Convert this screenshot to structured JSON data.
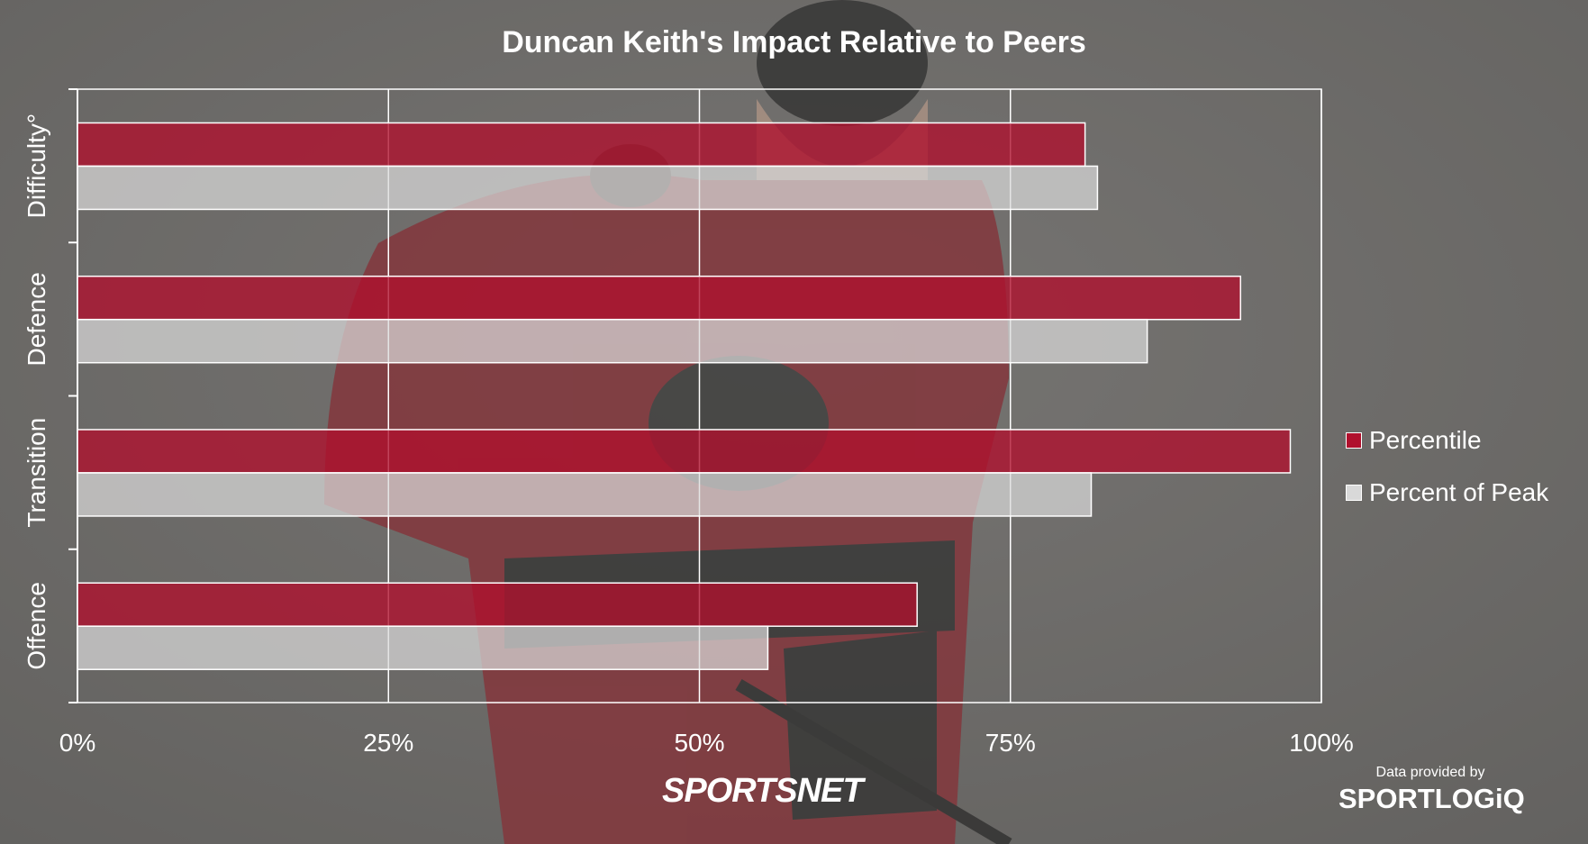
{
  "chart_data": {
    "type": "bar",
    "orientation": "horizontal",
    "title": "Duncan Keith's Impact Relative to Peers",
    "categories": [
      "Difficulty°",
      "Defence",
      "Transition",
      "Offence"
    ],
    "series": [
      {
        "name": "Percentile",
        "color": "#b0102d",
        "values": [
          81,
          93.5,
          97.5,
          67.5
        ]
      },
      {
        "name": "Percent of Peak",
        "color": "#d9d9d9",
        "values": [
          82,
          86,
          81.5,
          55.5
        ]
      }
    ],
    "xlim": [
      0,
      100
    ],
    "x_ticks": [
      "0%",
      "25%",
      "50%",
      "75%",
      "100%"
    ],
    "grid": true,
    "legend_placement": "right"
  },
  "footer": {
    "brand": "SPORTSNET",
    "source_label": "Data provided by",
    "source_name": "SPORTLOGiQ"
  }
}
